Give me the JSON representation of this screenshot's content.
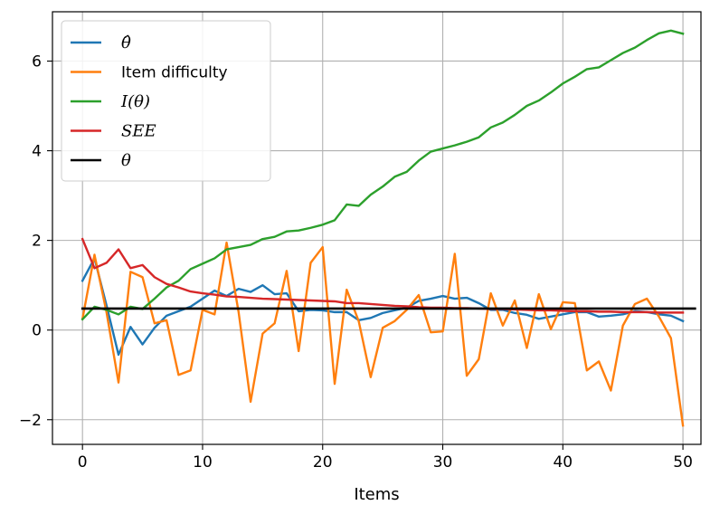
{
  "chart_data": {
    "type": "line",
    "xlabel": "Items",
    "ylabel": "",
    "xlim": [
      -2.5,
      51.5
    ],
    "ylim": [
      -2.55,
      7.1
    ],
    "xticks": [
      0,
      10,
      20,
      30,
      40,
      50
    ],
    "yticks": [
      -2,
      0,
      2,
      4,
      6
    ],
    "ytick_labels": [
      "−2",
      "0",
      "2",
      "4",
      "6"
    ],
    "grid": true,
    "legend_position": "top-left",
    "series": [
      {
        "name": "θ̂",
        "color": "#1f77b4",
        "x": [
          0,
          1,
          2,
          3,
          4,
          5,
          6,
          7,
          8,
          9,
          10,
          11,
          12,
          13,
          14,
          15,
          16,
          17,
          18,
          19,
          20,
          21,
          22,
          23,
          24,
          25,
          26,
          27,
          28,
          29,
          30,
          31,
          32,
          33,
          34,
          35,
          36,
          37,
          38,
          39,
          40,
          41,
          42,
          43,
          44,
          45,
          46,
          47,
          48,
          49,
          50
        ],
        "values": [
          1.1,
          1.6,
          0.55,
          -0.55,
          0.07,
          -0.32,
          0.05,
          0.32,
          0.42,
          0.52,
          0.7,
          0.88,
          0.76,
          0.92,
          0.85,
          1.0,
          0.8,
          0.82,
          0.42,
          0.45,
          0.44,
          0.4,
          0.4,
          0.22,
          0.27,
          0.38,
          0.44,
          0.5,
          0.65,
          0.7,
          0.76,
          0.7,
          0.72,
          0.6,
          0.45,
          0.45,
          0.38,
          0.34,
          0.25,
          0.3,
          0.35,
          0.4,
          0.4,
          0.3,
          0.32,
          0.35,
          0.42,
          0.4,
          0.35,
          0.32,
          0.2
        ]
      },
      {
        "name": "Item difficulty",
        "color": "#ff7f0e",
        "x": [
          0,
          1,
          2,
          3,
          4,
          5,
          6,
          7,
          8,
          9,
          10,
          11,
          12,
          13,
          14,
          15,
          16,
          17,
          18,
          19,
          20,
          21,
          22,
          23,
          24,
          25,
          26,
          27,
          28,
          29,
          30,
          31,
          32,
          33,
          34,
          35,
          36,
          37,
          38,
          39,
          40,
          41,
          42,
          43,
          44,
          45,
          46,
          47,
          48,
          49,
          50
        ],
        "values": [
          0.25,
          1.68,
          0.4,
          -1.17,
          1.3,
          1.18,
          0.15,
          0.22,
          -1.0,
          -0.9,
          0.45,
          0.35,
          1.95,
          0.4,
          -1.6,
          -0.08,
          0.15,
          1.32,
          -0.47,
          1.5,
          1.85,
          -1.2,
          0.9,
          0.2,
          -1.05,
          0.05,
          0.2,
          0.45,
          0.78,
          -0.05,
          -0.03,
          1.7,
          -1.02,
          -0.65,
          0.82,
          0.1,
          0.66,
          -0.4,
          0.8,
          0.02,
          0.62,
          0.6,
          -0.9,
          -0.7,
          -1.35,
          0.1,
          0.58,
          0.7,
          0.3,
          -0.18,
          -2.13
        ]
      },
      {
        "name": "I(θ)",
        "color": "#2ca02c",
        "x": [
          0,
          1,
          2,
          3,
          4,
          5,
          6,
          7,
          8,
          9,
          10,
          11,
          12,
          13,
          14,
          15,
          16,
          17,
          18,
          19,
          20,
          21,
          22,
          23,
          24,
          25,
          26,
          27,
          28,
          29,
          30,
          31,
          32,
          33,
          34,
          35,
          36,
          37,
          38,
          39,
          40,
          41,
          42,
          43,
          44,
          45,
          46,
          47,
          48,
          49,
          50
        ],
        "values": [
          0.24,
          0.52,
          0.45,
          0.35,
          0.52,
          0.47,
          0.7,
          0.95,
          1.1,
          1.36,
          1.48,
          1.6,
          1.8,
          1.85,
          1.9,
          2.03,
          2.08,
          2.2,
          2.22,
          2.28,
          2.35,
          2.45,
          2.8,
          2.77,
          3.02,
          3.2,
          3.42,
          3.53,
          3.78,
          3.98,
          4.05,
          4.12,
          4.2,
          4.3,
          4.52,
          4.63,
          4.8,
          5.0,
          5.12,
          5.3,
          5.5,
          5.65,
          5.82,
          5.86,
          6.02,
          6.18,
          6.3,
          6.47,
          6.62,
          6.68,
          6.61
        ]
      },
      {
        "name": "SEE",
        "color": "#d62728",
        "x": [
          0,
          1,
          2,
          3,
          4,
          5,
          6,
          7,
          8,
          9,
          10,
          11,
          12,
          13,
          14,
          15,
          16,
          17,
          18,
          19,
          20,
          21,
          22,
          23,
          24,
          25,
          26,
          27,
          28,
          29,
          30,
          31,
          32,
          33,
          34,
          35,
          36,
          37,
          38,
          39,
          40,
          41,
          42,
          43,
          44,
          45,
          46,
          47,
          48,
          49,
          50
        ],
        "values": [
          2.03,
          1.38,
          1.5,
          1.8,
          1.38,
          1.45,
          1.18,
          1.03,
          0.95,
          0.86,
          0.82,
          0.79,
          0.75,
          0.74,
          0.72,
          0.7,
          0.69,
          0.68,
          0.67,
          0.66,
          0.65,
          0.64,
          0.6,
          0.6,
          0.58,
          0.56,
          0.54,
          0.53,
          0.51,
          0.5,
          0.5,
          0.49,
          0.49,
          0.48,
          0.47,
          0.47,
          0.46,
          0.45,
          0.44,
          0.44,
          0.43,
          0.42,
          0.42,
          0.41,
          0.41,
          0.4,
          0.4,
          0.4,
          0.39,
          0.39,
          0.39
        ]
      },
      {
        "name": "θ",
        "color": "#000000",
        "x": [
          0,
          51
        ],
        "values": [
          0.48,
          0.48
        ]
      }
    ]
  }
}
